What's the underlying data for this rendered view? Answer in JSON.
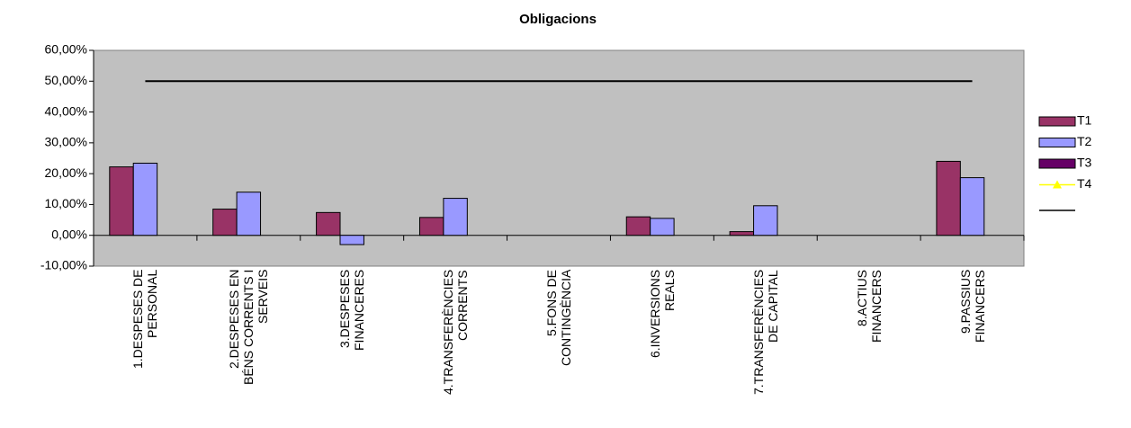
{
  "chart_data": {
    "type": "bar",
    "title": "Obligacions",
    "categories": [
      "1.DESPESES DE\nPERSONAL",
      "2.DESPESES EN\nBÉNS CORRENTS I\nSERVEIS",
      "3.DESPESES\nFINANCERES",
      "4.TRANSFERÈNCIES\nCORRENTS",
      "5.FONS DE\nCONTINGÈNCIA",
      "6.INVERSIONS\nREALS",
      "7.TRANSFERÈNCIES\nDE CAPITAL",
      "8.ACTIUS\nFINANCERS",
      "9.PASSIUS\nFINANCERS"
    ],
    "series": [
      {
        "name": "T1",
        "type": "bar",
        "color": "#993366",
        "values": [
          22.2,
          8.5,
          7.4,
          5.8,
          null,
          6,
          1.2,
          null,
          24
        ]
      },
      {
        "name": "T2",
        "type": "bar",
        "color": "#9999ff",
        "values": [
          23.4,
          14,
          -3,
          12,
          null,
          5.5,
          9.6,
          null,
          18.7
        ]
      },
      {
        "name": "T3",
        "type": "bar",
        "color": "#660066",
        "values": [
          null,
          null,
          null,
          null,
          null,
          null,
          null,
          null,
          null
        ]
      },
      {
        "name": "T4",
        "type": "line",
        "color": "#ffff00",
        "values": [
          null,
          null,
          null,
          null,
          null,
          null,
          null,
          null,
          null
        ]
      },
      {
        "type": "line",
        "color": "#000000",
        "values": [
          50,
          50,
          50,
          50,
          50,
          50,
          50,
          50,
          50
        ]
      }
    ],
    "ylim": [
      -10,
      60
    ],
    "yticks": [
      {
        "value": -10,
        "label": "-10,00%"
      },
      {
        "value": 0,
        "label": "0,00%"
      },
      {
        "value": 10,
        "label": "10,00%"
      },
      {
        "value": 20,
        "label": "20,00%"
      },
      {
        "value": 30,
        "label": "30,00%"
      },
      {
        "value": 40,
        "label": "40,00%"
      },
      {
        "value": 50,
        "label": "50,00%"
      },
      {
        "value": 60,
        "label": "60,00%"
      }
    ],
    "legend": "right"
  }
}
